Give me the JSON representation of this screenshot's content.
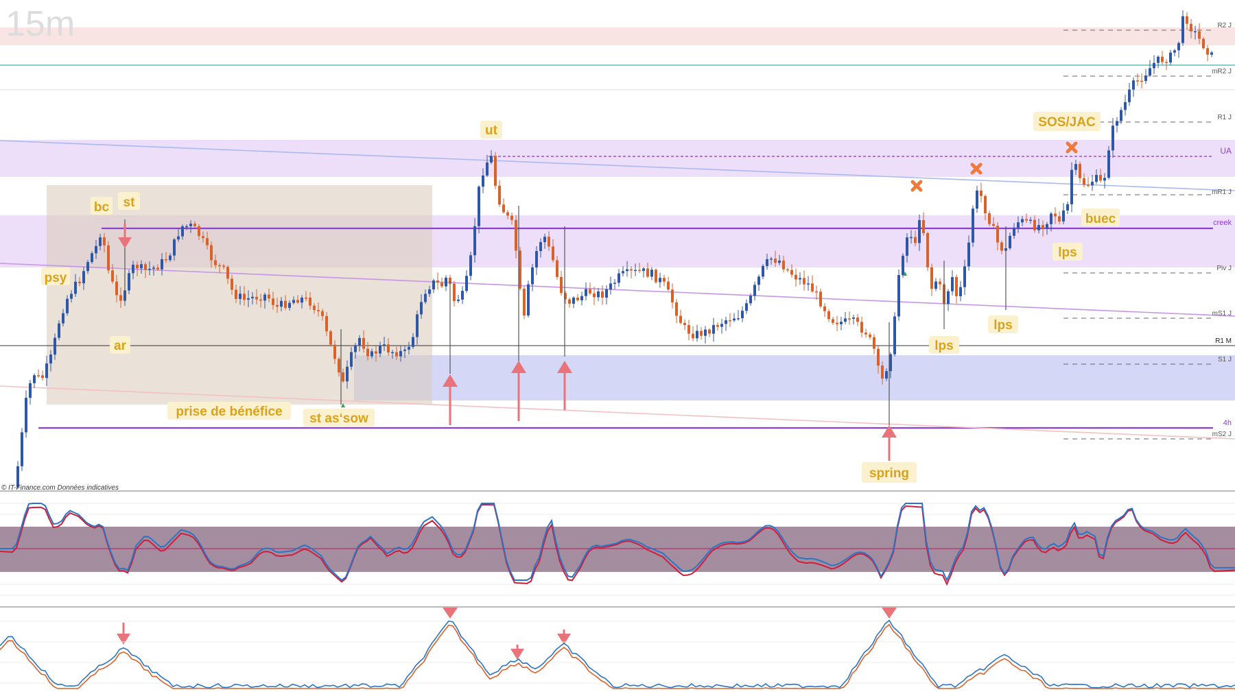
{
  "timeframe": "15m",
  "copyright": "© IT-Finance.com Données indicatives",
  "colors": {
    "bull": "#2f57a8",
    "bear": "#d9622b",
    "upper_band": "#f9e1e1",
    "purple_zone": "#e4d6f7",
    "blue_zone": "#bfc4f2",
    "range_box": "#ddd2c2",
    "purple_line": "#8a3fcf",
    "arrow": "#e9737a",
    "label_bg": "#fbf1cf",
    "label_text": "#d8a21c",
    "x_mark": "#f07a3c",
    "rsi_band": "#8a6d84",
    "osc_blue": "#2b74c5",
    "osc_red": "#cf1d3c"
  },
  "right_labels": [
    "R2 J",
    "mR2 J",
    "R1 J",
    "UA",
    "mR1 J",
    "creek",
    "Piv J",
    "mS1 J",
    "R1 M",
    "S1 J",
    "4h",
    "mS2 J"
  ],
  "wyckoff_labels": {
    "bc": "bc",
    "st": "st",
    "psy": "psy",
    "ar": "ar",
    "prise": "prise de bénéfice",
    "st_as_sow": "st as‘sow",
    "ut": "ut",
    "spring": "spring",
    "lps1": "lps",
    "lps2": "lps",
    "lps3": "lps",
    "sos": "SOS/JAC",
    "buec": "buec"
  },
  "icons": {
    "arrow_up": "arrow-up-icon",
    "arrow_down": "arrow-down-icon",
    "x_mark": "x-mark-icon",
    "mini_arrow": "small-green-arrow-icon"
  }
}
